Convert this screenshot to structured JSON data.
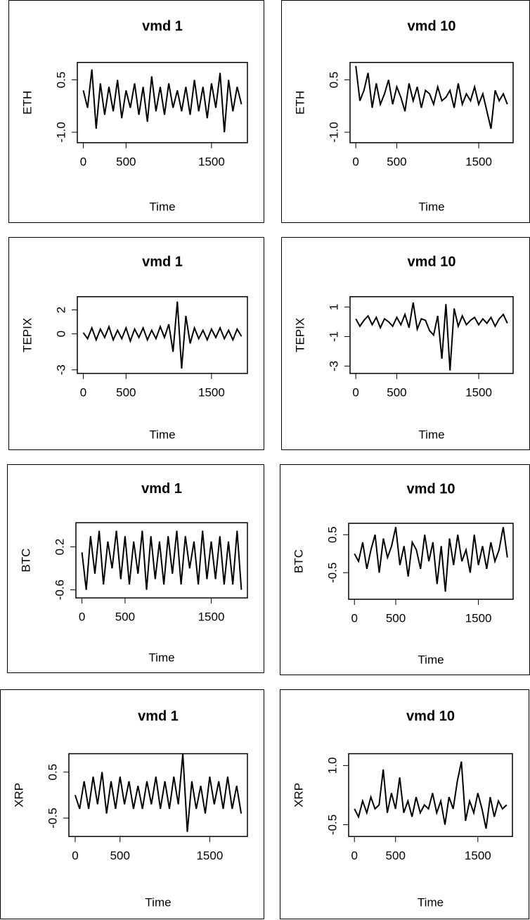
{
  "chart_data": [
    {
      "type": "line",
      "title": "vmd 1",
      "y_label": "ETH",
      "x_label": "Time",
      "color": "#000000",
      "x": [
        0,
        50,
        100,
        150,
        200,
        250,
        300,
        350,
        400,
        450,
        500,
        550,
        600,
        650,
        700,
        750,
        800,
        850,
        900,
        950,
        1000,
        1050,
        1100,
        1150,
        1200,
        1250,
        1300,
        1350,
        1400,
        1450,
        1500,
        1550,
        1600,
        1650,
        1700,
        1750,
        1800,
        1850
      ],
      "values": [
        0.2,
        -0.3,
        0.8,
        -0.9,
        0.4,
        -0.5,
        0.3,
        -0.4,
        0.5,
        -0.6,
        0.2,
        -0.3,
        0.4,
        -0.5,
        0.3,
        -0.7,
        0.6,
        -0.4,
        0.3,
        -0.5,
        0.4,
        -0.3,
        0.2,
        -0.4,
        0.3,
        -0.5,
        0.5,
        -0.4,
        0.3,
        -0.6,
        0.4,
        -0.3,
        0.7,
        -1.0,
        0.5,
        -0.4,
        0.3,
        -0.2
      ],
      "xlim": [
        -70,
        1920
      ],
      "ylim": [
        -1.3,
        1.0
      ],
      "xticks": [
        0,
        500,
        1500
      ],
      "yticks": [
        {
          "value": -1,
          "label": "-1.0"
        },
        0.5
      ]
    },
    {
      "type": "line",
      "title": "vmd 10",
      "y_label": "ETH",
      "x_label": "Time",
      "color": "#000000",
      "x": [
        0,
        50,
        100,
        150,
        200,
        250,
        300,
        350,
        400,
        450,
        500,
        550,
        600,
        650,
        700,
        750,
        800,
        850,
        900,
        950,
        1000,
        1050,
        1100,
        1150,
        1200,
        1250,
        1300,
        1350,
        1400,
        1450,
        1500,
        1550,
        1600,
        1650,
        1700,
        1750,
        1800,
        1850
      ],
      "values": [
        0.9,
        -0.1,
        0.2,
        0.7,
        -0.3,
        0.4,
        -0.2,
        0.1,
        0.5,
        -0.2,
        0.3,
        0.0,
        -0.4,
        0.4,
        -0.1,
        0.3,
        -0.3,
        0.2,
        0.1,
        -0.2,
        0.3,
        -0.1,
        0.0,
        0.2,
        -0.3,
        0.4,
        -0.2,
        0.1,
        -0.1,
        0.3,
        -0.2,
        0.1,
        -0.4,
        -0.9,
        0.2,
        -0.1,
        0.1,
        -0.2
      ],
      "xlim": [
        -70,
        1920
      ],
      "ylim": [
        -1.3,
        1.0
      ],
      "xticks": [
        0,
        500,
        1500
      ],
      "yticks": [
        {
          "value": -1,
          "label": "-1.0"
        },
        0.5
      ]
    },
    {
      "type": "line",
      "title": "vmd 1",
      "y_label": "TEPIX",
      "x_label": "Time",
      "color": "#000000",
      "x": [
        0,
        50,
        100,
        150,
        200,
        250,
        300,
        350,
        400,
        450,
        500,
        550,
        600,
        650,
        700,
        750,
        800,
        850,
        900,
        950,
        1000,
        1050,
        1100,
        1150,
        1200,
        1250,
        1300,
        1350,
        1400,
        1450,
        1500,
        1550,
        1600,
        1650,
        1700,
        1750,
        1800,
        1850
      ],
      "values": [
        0.1,
        -0.4,
        0.5,
        -0.5,
        0.4,
        -0.3,
        0.6,
        -0.5,
        0.3,
        -0.4,
        0.5,
        -0.6,
        0.4,
        -0.3,
        0.5,
        -0.5,
        0.3,
        -0.4,
        0.6,
        -0.3,
        0.8,
        -1.5,
        2.7,
        -2.9,
        1.5,
        -0.8,
        0.5,
        -0.4,
        0.3,
        -0.5,
        0.4,
        -0.3,
        0.5,
        -0.4,
        0.3,
        -0.5,
        0.4,
        -0.2
      ],
      "xlim": [
        -70,
        1920
      ],
      "ylim": [
        -3.3,
        3.1
      ],
      "xticks": [
        0,
        500,
        1500
      ],
      "yticks": [
        -3,
        0,
        2
      ]
    },
    {
      "type": "line",
      "title": "vmd 10",
      "y_label": "TEPIX",
      "x_label": "Time",
      "color": "#000000",
      "x": [
        0,
        50,
        100,
        150,
        200,
        250,
        300,
        350,
        400,
        450,
        500,
        550,
        600,
        650,
        700,
        750,
        800,
        850,
        900,
        950,
        1000,
        1050,
        1100,
        1150,
        1200,
        1250,
        1300,
        1350,
        1400,
        1450,
        1500,
        1550,
        1600,
        1650,
        1700,
        1750,
        1800,
        1850
      ],
      "values": [
        0.2,
        -0.3,
        0.1,
        0.4,
        -0.2,
        0.3,
        -0.4,
        0.2,
        0.0,
        -0.3,
        0.3,
        -0.2,
        0.5,
        -0.4,
        1.3,
        -0.5,
        0.2,
        0.1,
        -0.6,
        -0.9,
        0.4,
        -2.5,
        1.2,
        -3.3,
        0.9,
        -0.3,
        0.4,
        -0.2,
        0.1,
        0.3,
        -0.2,
        0.2,
        -0.1,
        0.3,
        -0.3,
        0.2,
        0.5,
        -0.1
      ],
      "xlim": [
        -70,
        1920
      ],
      "ylim": [
        -3.5,
        1.7
      ],
      "xticks": [
        0,
        500,
        1500
      ],
      "yticks": [
        -3,
        -1,
        1
      ]
    },
    {
      "type": "line",
      "title": "vmd 1",
      "y_label": "BTC",
      "x_label": "Time",
      "color": "#000000",
      "x": [
        0,
        50,
        100,
        150,
        200,
        250,
        300,
        350,
        400,
        450,
        500,
        550,
        600,
        650,
        700,
        750,
        800,
        850,
        900,
        950,
        1000,
        1050,
        1100,
        1150,
        1200,
        1250,
        1300,
        1350,
        1400,
        1450,
        1500,
        1550,
        1600,
        1650,
        1700,
        1750,
        1800,
        1850
      ],
      "values": [
        0.1,
        -0.6,
        0.4,
        -0.3,
        0.5,
        -0.5,
        0.3,
        -0.2,
        0.5,
        -0.4,
        0.4,
        -0.5,
        0.3,
        -0.3,
        0.5,
        -0.6,
        0.4,
        -0.4,
        0.3,
        -0.5,
        0.4,
        -0.3,
        0.5,
        -0.5,
        0.4,
        -0.2,
        0.3,
        -0.5,
        0.5,
        -0.4,
        0.3,
        -0.4,
        0.4,
        -0.5,
        0.3,
        -0.5,
        0.5,
        -0.6
      ],
      "xlim": [
        -70,
        1920
      ],
      "ylim": [
        -0.75,
        0.65
      ],
      "xticks": [
        0,
        500,
        1500
      ],
      "yticks": [
        -0.6,
        0.2
      ]
    },
    {
      "type": "line",
      "title": "vmd 10",
      "y_label": "BTC",
      "x_label": "Time",
      "color": "#000000",
      "x": [
        0,
        50,
        100,
        150,
        200,
        250,
        300,
        350,
        400,
        450,
        500,
        550,
        600,
        650,
        700,
        750,
        800,
        850,
        900,
        950,
        1000,
        1050,
        1100,
        1150,
        1200,
        1250,
        1300,
        1350,
        1400,
        1450,
        1500,
        1550,
        1600,
        1650,
        1700,
        1750,
        1800,
        1850
      ],
      "values": [
        0.0,
        -0.2,
        0.3,
        -0.4,
        0.1,
        0.5,
        -0.5,
        0.4,
        -0.1,
        0.2,
        0.7,
        -0.3,
        0.2,
        -0.6,
        0.3,
        0.1,
        -0.4,
        0.5,
        -0.2,
        0.3,
        -0.8,
        0.2,
        -1.0,
        0.4,
        -0.3,
        0.5,
        -0.2,
        0.1,
        -0.5,
        0.5,
        -0.3,
        0.2,
        -0.4,
        0.3,
        -0.2,
        0.1,
        0.7,
        -0.1
      ],
      "xlim": [
        -70,
        1920
      ],
      "ylim": [
        -1.2,
        0.8
      ],
      "xticks": [
        0,
        500,
        1500
      ],
      "yticks": [
        -0.5,
        0.5
      ]
    },
    {
      "type": "line",
      "title": "vmd 1",
      "y_label": "XRP",
      "x_label": "Time",
      "color": "#000000",
      "x": [
        0,
        50,
        100,
        150,
        200,
        250,
        300,
        350,
        400,
        450,
        500,
        550,
        600,
        650,
        700,
        750,
        800,
        850,
        900,
        950,
        1000,
        1050,
        1100,
        1150,
        1200,
        1250,
        1300,
        1350,
        1400,
        1450,
        1500,
        1550,
        1600,
        1650,
        1700,
        1750,
        1800,
        1850
      ],
      "values": [
        0.0,
        -0.3,
        0.3,
        -0.3,
        0.4,
        -0.2,
        0.5,
        -0.4,
        0.3,
        -0.3,
        0.4,
        -0.2,
        0.3,
        -0.3,
        0.2,
        -0.3,
        0.3,
        -0.2,
        0.4,
        -0.3,
        0.3,
        -0.3,
        0.4,
        -0.2,
        0.9,
        -0.8,
        0.3,
        -0.3,
        0.2,
        -0.4,
        0.4,
        -0.2,
        0.3,
        -0.3,
        0.4,
        -0.3,
        0.2,
        -0.4
      ],
      "xlim": [
        -70,
        1920
      ],
      "ylim": [
        -0.9,
        0.9
      ],
      "xticks": [
        0,
        500,
        1500
      ],
      "yticks": [
        -0.5,
        0.5
      ]
    },
    {
      "type": "line",
      "title": "vmd 10",
      "y_label": "XRP",
      "x_label": "Time",
      "color": "#000000",
      "x": [
        0,
        50,
        100,
        150,
        200,
        250,
        300,
        350,
        400,
        450,
        500,
        550,
        600,
        650,
        700,
        750,
        800,
        850,
        900,
        950,
        1000,
        1050,
        1100,
        1150,
        1200,
        1250,
        1300,
        1350,
        1400,
        1450,
        1500,
        1550,
        1600,
        1650,
        1700,
        1750,
        1800,
        1850
      ],
      "values": [
        -0.1,
        -0.3,
        0.1,
        -0.2,
        0.2,
        -0.1,
        0.0,
        0.9,
        -0.2,
        0.3,
        -0.1,
        0.7,
        -0.2,
        0.1,
        -0.3,
        0.2,
        -0.2,
        0.0,
        -0.1,
        0.3,
        -0.2,
        0.1,
        -0.5,
        0.2,
        -0.1,
        0.6,
        1.1,
        -0.4,
        0.1,
        -0.2,
        0.3,
        -0.1,
        -0.6,
        0.2,
        -0.3,
        0.1,
        -0.1,
        0.0
      ],
      "xlim": [
        -70,
        1920
      ],
      "ylim": [
        -0.8,
        1.3
      ],
      "xticks": [
        0,
        500,
        1500
      ],
      "yticks": [
        -0.5,
        {
          "value": 1,
          "label": "1.0"
        }
      ]
    }
  ]
}
